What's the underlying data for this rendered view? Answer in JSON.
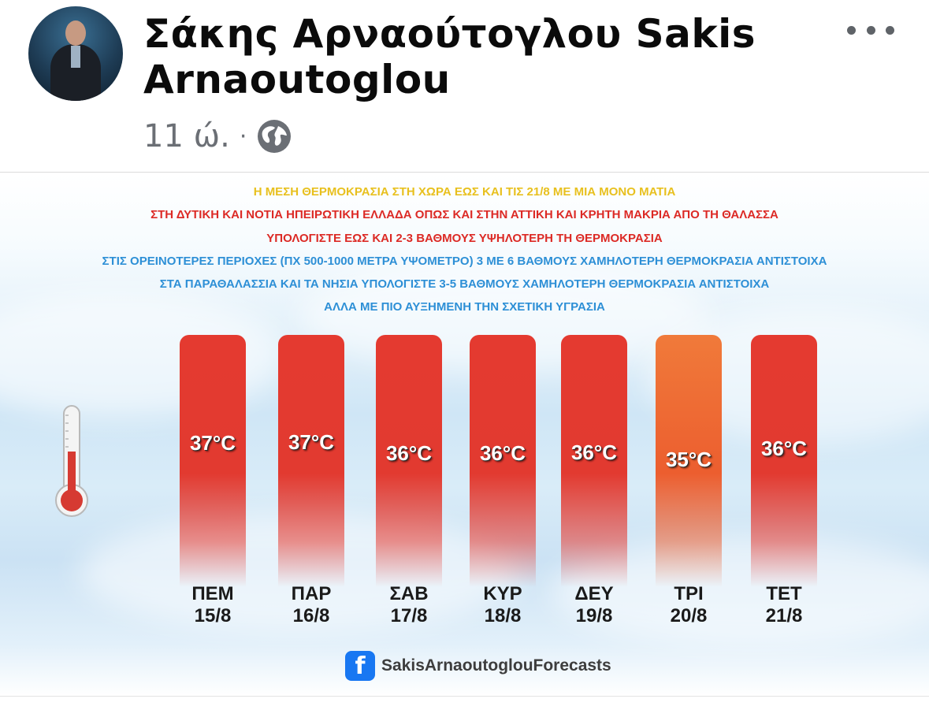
{
  "post": {
    "author_name": "Σάκης Αρναούτογλου Sakis Arnaoutoglou",
    "time": "11 ώ.",
    "separator": "·",
    "privacy_icon": "globe-icon",
    "more_icon": "more-options-icon"
  },
  "image": {
    "lines": [
      {
        "text": "Η ΜΕΣΗ ΘΕΡΜΟΚΡΑΣΙΑ ΣΤΗ ΧΩΡΑ ΕΩΣ ΚΑΙ ΤΙΣ 21/8 ΜΕ ΜΙΑ ΜΟΝΟ ΜΑΤΙΑ",
        "color": "#e8c01e"
      },
      {
        "text": "ΣΤΗ ΔΥΤΙΚΗ ΚΑΙ ΝΟΤΙΑ ΗΠΕΙΡΩΤΙΚΗ ΕΛΛΑΔΑ ΟΠΩΣ ΚΑΙ ΣΤΗΝ ΑΤΤΙΚΗ ΚΑΙ ΚΡΗΤΗ ΜΑΚΡΙΑ ΑΠΟ ΤΗ ΘΑΛΑΣΣΑ",
        "color": "#dc2a25"
      },
      {
        "text": "ΥΠΟΛΟΓΙΣΤΕ ΕΩΣ ΚΑΙ 2-3 ΒΑΘΜΟΥΣ ΥΨΗΛΟΤΕΡΗ ΤΗ ΘΕΡΜΟΚΡΑΣΙΑ",
        "color": "#dc2a25"
      },
      {
        "text": "ΣΤΙΣ ΟΡΕΙΝΟΤΕΡΕΣ ΠΕΡΙΟΧΕΣ (ΠΧ 500-1000 ΜΕΤΡΑ ΥΨΟΜΕΤΡΟ) 3 ΜΕ 6 ΒΑΘΜΟΥΣ ΧΑΜΗΛΟΤΕΡΗ ΘΕΡΜΟΚΡΑΣΙΑ ΑΝΤΙΣΤΟΙΧΑ",
        "color": "#2d8fd6"
      },
      {
        "text": "ΣΤΑ ΠΑΡΑΘΑΛΑΣΣΙΑ ΚΑΙ ΤΑ ΝΗΣΙΑ ΥΠΟΛΟΓΙΣΤΕ 3-5 ΒΑΘΜΟΥΣ ΧΑΜΗΛΟΤΕΡΗ ΘΕΡΜΟΚΡΑΣΙΑ ΑΝΤΙΣΤΟΙΧΑ",
        "color": "#2d8fd6"
      },
      {
        "text": "ΑΛΛΑ ΜΕ ΠΙΟ ΑΥΞΗΜΕΝΗ ΤΗΝ ΣΧΕΤΙΚΗ ΥΓΡΑΣΙΑ",
        "color": "#2d8fd6"
      }
    ],
    "forecast": [
      {
        "day": "ΠΕΜ",
        "date": "15/8",
        "temp": "37°C",
        "color": "red"
      },
      {
        "day": "ΠΑΡ",
        "date": "16/8",
        "temp": "37°C",
        "color": "red"
      },
      {
        "day": "ΣΑΒ",
        "date": "17/8",
        "temp": "36°C",
        "color": "red"
      },
      {
        "day": "ΚΥΡ",
        "date": "18/8",
        "temp": "36°C",
        "color": "red"
      },
      {
        "day": "ΔΕΥ",
        "date": "19/8",
        "temp": "36°C",
        "color": "red"
      },
      {
        "day": "ΤΡΙ",
        "date": "20/8",
        "temp": "35°C",
        "color": "orange"
      },
      {
        "day": "ΤΕΤ",
        "date": "21/8",
        "temp": "36°C",
        "color": "red"
      }
    ],
    "thermometer_icon": "thermometer-icon",
    "brand_icon": "facebook-icon",
    "brand_text": "SakisArnaoutoglouForecasts"
  }
}
